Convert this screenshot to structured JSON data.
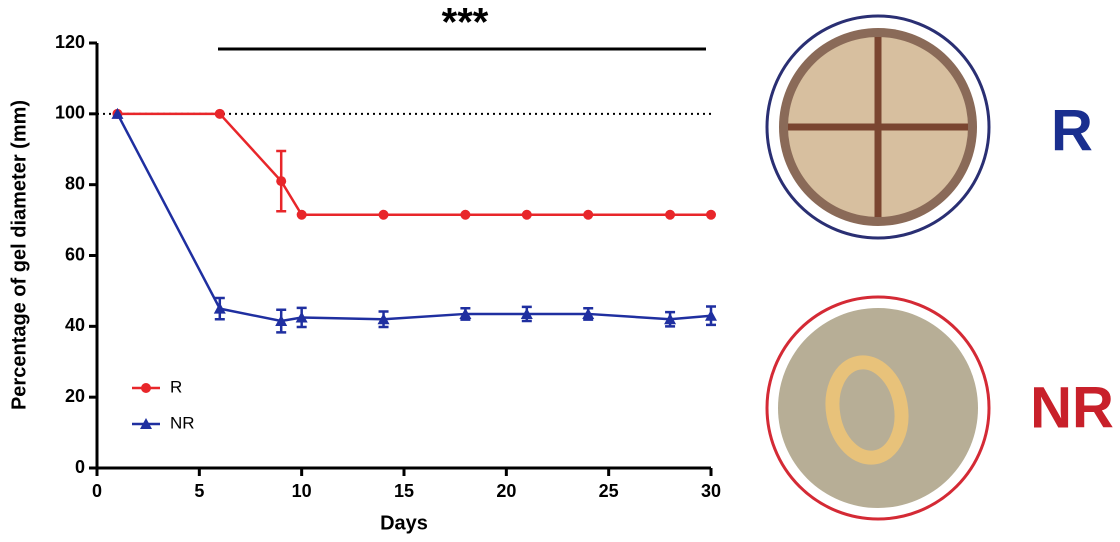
{
  "chart_data": {
    "type": "line",
    "x_label": "Days",
    "y_label": "Percentage of gel diameter (mm)",
    "annotation": "***",
    "reference_line": 100,
    "xlim": [
      0,
      30
    ],
    "xticks": [
      0,
      5,
      10,
      15,
      20,
      25,
      30
    ],
    "ylim": [
      0,
      120
    ],
    "yticks": [
      0,
      20,
      40,
      60,
      80,
      100,
      120
    ],
    "x": [
      1,
      6,
      9,
      10,
      14,
      18,
      21,
      24,
      28,
      30
    ],
    "series": [
      {
        "name": "R",
        "color": "#e8262a",
        "marker": "circle",
        "values": [
          100,
          100,
          81,
          71.5,
          71.5,
          71.5,
          71.5,
          71.5,
          71.5,
          71.5
        ],
        "errors": [
          null,
          null,
          8.5,
          null,
          null,
          null,
          null,
          null,
          null,
          null
        ]
      },
      {
        "name": "NR",
        "color": "#1f2fa0",
        "marker": "triangle",
        "values": [
          100,
          45,
          41.5,
          42.5,
          42,
          43.5,
          43.5,
          43.5,
          42,
          43
        ],
        "errors": [
          null,
          3,
          3.2,
          2.7,
          2.2,
          1.6,
          2,
          1.6,
          2,
          2.6
        ]
      }
    ],
    "legend": "lower left",
    "photo_labels": [
      {
        "label": "R",
        "color": "#1a2f8f"
      },
      {
        "label": "NR",
        "color": "#c8202a"
      }
    ]
  }
}
